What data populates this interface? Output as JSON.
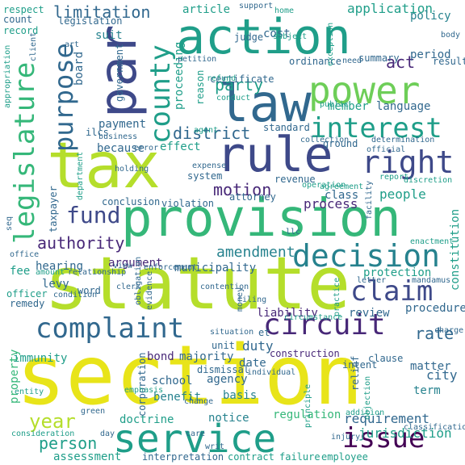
{
  "title": "",
  "palette": {
    "yellow": "#e8e419",
    "lime": "#b5de2b",
    "green": "#6ece58",
    "teal_green": "#35b779",
    "teal": "#1f9e89",
    "blue_teal": "#26828e",
    "blue": "#31688e",
    "indigo": "#3e4989",
    "purple": "#482878",
    "dark": "#440154"
  },
  "words": [
    {
      "text": "section",
      "color": "yellow"
    },
    {
      "text": "statute",
      "color": "lime"
    },
    {
      "text": "tax",
      "color": "lime"
    },
    {
      "text": "provision",
      "color": "teal_green"
    },
    {
      "text": "action",
      "color": "teal"
    },
    {
      "text": "law",
      "color": "blue"
    },
    {
      "text": "rule",
      "color": "indigo"
    },
    {
      "text": "par",
      "color": "indigo"
    },
    {
      "text": "power",
      "color": "green"
    },
    {
      "text": "service",
      "color": "teal"
    },
    {
      "text": "county",
      "color": "teal"
    },
    {
      "text": "legislature",
      "color": "teal_green"
    },
    {
      "text": "purpose",
      "color": "blue"
    },
    {
      "text": "interest",
      "color": "teal"
    },
    {
      "text": "right",
      "color": "indigo"
    },
    {
      "text": "decision",
      "color": "blue_teal"
    },
    {
      "text": "claim",
      "color": "indigo"
    },
    {
      "text": "circuit",
      "color": "purple"
    },
    {
      "text": "complaint",
      "color": "blue"
    },
    {
      "text": "issue",
      "color": "dark"
    },
    {
      "text": "fund",
      "color": "indigo"
    },
    {
      "text": "year",
      "color": "lime"
    },
    {
      "text": "authority",
      "color": "purple"
    },
    {
      "text": "person",
      "color": "teal"
    },
    {
      "text": "party",
      "color": "teal"
    },
    {
      "text": "district",
      "color": "blue"
    },
    {
      "text": "rate",
      "color": "blue"
    },
    {
      "text": "motion",
      "color": "purple"
    },
    {
      "text": "amendment",
      "color": "blue_teal"
    },
    {
      "text": "limitation",
      "color": "blue"
    },
    {
      "text": "act",
      "color": "purple"
    },
    {
      "text": "application",
      "color": "teal"
    },
    {
      "text": "requirement",
      "color": "blue"
    },
    {
      "text": "jurisdiction",
      "color": "teal"
    },
    {
      "text": "process",
      "color": "purple"
    },
    {
      "text": "people",
      "color": "teal"
    },
    {
      "text": "hearing",
      "color": "blue"
    },
    {
      "text": "argument",
      "color": "purple"
    },
    {
      "text": "duty",
      "color": "blue"
    },
    {
      "text": "bond",
      "color": "purple"
    },
    {
      "text": "majority",
      "color": "blue"
    },
    {
      "text": "school",
      "color": "blue"
    },
    {
      "text": "agency",
      "color": "blue"
    },
    {
      "text": "basis",
      "color": "blue_teal"
    },
    {
      "text": "city",
      "color": "blue"
    },
    {
      "text": "term",
      "color": "blue_teal"
    },
    {
      "text": "matter",
      "color": "blue"
    },
    {
      "text": "date",
      "color": "blue"
    },
    {
      "text": "benefit",
      "color": "blue_teal"
    },
    {
      "text": "doctrine",
      "color": "teal"
    },
    {
      "text": "notice",
      "color": "blue_teal"
    },
    {
      "text": "regulation",
      "color": "teal_green"
    },
    {
      "text": "assessment",
      "color": "teal"
    },
    {
      "text": "contract",
      "color": "teal"
    },
    {
      "text": "effect",
      "color": "teal"
    },
    {
      "text": "because",
      "color": "blue"
    },
    {
      "text": "payment",
      "color": "blue"
    },
    {
      "text": "proceeding",
      "color": "teal"
    },
    {
      "text": "language",
      "color": "blue"
    },
    {
      "text": "member",
      "color": "teal"
    },
    {
      "text": "period",
      "color": "blue"
    },
    {
      "text": "policy",
      "color": "blue_teal"
    },
    {
      "text": "article",
      "color": "teal"
    },
    {
      "text": "cost",
      "color": "blue"
    },
    {
      "text": "ordinance",
      "color": "blue"
    },
    {
      "text": "suit",
      "color": "blue_teal"
    },
    {
      "text": "board",
      "color": "blue"
    },
    {
      "text": "reason",
      "color": "teal"
    },
    {
      "text": "government",
      "color": "blue"
    },
    {
      "text": "fee",
      "color": "teal"
    },
    {
      "text": "levy",
      "color": "blue"
    },
    {
      "text": "immunity",
      "color": "teal"
    },
    {
      "text": "property",
      "color": "teal_green"
    },
    {
      "text": "taxpayer",
      "color": "blue"
    },
    {
      "text": "class",
      "color": "blue"
    },
    {
      "text": "attorney",
      "color": "blue"
    },
    {
      "text": "review",
      "color": "blue"
    },
    {
      "text": "protection",
      "color": "teal"
    },
    {
      "text": "constitution",
      "color": "teal"
    },
    {
      "text": "procedure",
      "color": "blue"
    },
    {
      "text": "liability",
      "color": "purple"
    },
    {
      "text": "municipality",
      "color": "blue"
    },
    {
      "text": "construction",
      "color": "purple"
    },
    {
      "text": "intent",
      "color": "blue"
    },
    {
      "text": "clause",
      "color": "blue"
    },
    {
      "text": "dismissal",
      "color": "blue"
    },
    {
      "text": "corporation",
      "color": "blue"
    },
    {
      "text": "failure",
      "color": "teal"
    },
    {
      "text": "employee",
      "color": "teal"
    },
    {
      "text": "interpretation",
      "color": "blue"
    },
    {
      "text": "relief",
      "color": "blue"
    },
    {
      "text": "objection",
      "color": "teal"
    },
    {
      "text": "principle",
      "color": "teal"
    },
    {
      "text": "unit",
      "color": "blue"
    },
    {
      "text": "system",
      "color": "blue"
    },
    {
      "text": "standard",
      "color": "blue"
    },
    {
      "text": "ground",
      "color": "blue"
    },
    {
      "text": "violation",
      "color": "blue"
    },
    {
      "text": "conclusion",
      "color": "blue"
    },
    {
      "text": "remedy",
      "color": "blue"
    },
    {
      "text": "officer",
      "color": "teal"
    },
    {
      "text": "word",
      "color": "blue"
    },
    {
      "text": "certificate",
      "color": "blue"
    },
    {
      "text": "revenue",
      "color": "blue"
    },
    {
      "text": "record",
      "color": "teal"
    },
    {
      "text": "count",
      "color": "blue"
    },
    {
      "text": "respect",
      "color": "teal"
    },
    {
      "text": "legislation",
      "color": "blue"
    },
    {
      "text": "summary",
      "color": "blue"
    },
    {
      "text": "result",
      "color": "blue"
    },
    {
      "text": "charge",
      "color": "blue"
    },
    {
      "text": "emphasis",
      "color": "teal"
    },
    {
      "text": "judge",
      "color": "blue"
    },
    {
      "text": "care",
      "color": "blue"
    },
    {
      "text": "business",
      "color": "blue"
    },
    {
      "text": "collection",
      "color": "blue"
    },
    {
      "text": "determination",
      "color": "blue"
    },
    {
      "text": "mandamus",
      "color": "blue"
    },
    {
      "text": "exception",
      "color": "teal"
    },
    {
      "text": "body",
      "color": "blue"
    },
    {
      "text": "support",
      "color": "blue"
    },
    {
      "text": "home",
      "color": "teal"
    },
    {
      "text": "subject",
      "color": "teal"
    },
    {
      "text": "refund",
      "color": "teal"
    },
    {
      "text": "petition",
      "color": "blue"
    },
    {
      "text": "appropriation",
      "color": "teal"
    },
    {
      "text": "client",
      "color": "blue"
    },
    {
      "text": "amount",
      "color": "teal"
    },
    {
      "text": "relationship",
      "color": "blue"
    },
    {
      "text": "contention",
      "color": "blue"
    },
    {
      "text": "filing",
      "color": "blue"
    },
    {
      "text": "money",
      "color": "blue"
    },
    {
      "text": "circumstance",
      "color": "teal"
    },
    {
      "text": "practice",
      "color": "teal"
    },
    {
      "text": "facility",
      "color": "blue"
    },
    {
      "text": "enactment",
      "color": "teal"
    },
    {
      "text": "situation",
      "color": "blue"
    },
    {
      "text": "individual",
      "color": "blue"
    },
    {
      "text": "change",
      "color": "blue"
    },
    {
      "text": "entity",
      "color": "teal"
    },
    {
      "text": "consideration",
      "color": "teal"
    },
    {
      "text": "writ",
      "color": "blue"
    },
    {
      "text": "injury",
      "color": "blue"
    },
    {
      "text": "addition",
      "color": "teal"
    },
    {
      "text": "classification",
      "color": "blue"
    },
    {
      "text": "department",
      "color": "teal"
    },
    {
      "text": "holding",
      "color": "blue"
    },
    {
      "text": "obligation",
      "color": "blue"
    },
    {
      "text": "evidence",
      "color": "blue"
    },
    {
      "text": "operation",
      "color": "teal"
    },
    {
      "text": "agreement",
      "color": "teal"
    },
    {
      "text": "discretion",
      "color": "teal"
    },
    {
      "text": "report",
      "color": "teal"
    },
    {
      "text": "official",
      "color": "blue"
    },
    {
      "text": "agent",
      "color": "teal"
    },
    {
      "text": "error",
      "color": "blue"
    },
    {
      "text": "clerk",
      "color": "blue"
    },
    {
      "text": "enforcement",
      "color": "blue"
    },
    {
      "text": "condition",
      "color": "blue"
    },
    {
      "text": "letter",
      "color": "blue"
    },
    {
      "text": "view",
      "color": "blue"
    },
    {
      "text": "day",
      "color": "blue"
    },
    {
      "text": "et",
      "color": "blue"
    },
    {
      "text": "ilcs",
      "color": "blue"
    },
    {
      "text": "llc",
      "color": "blue"
    },
    {
      "text": "seq",
      "color": "blue"
    },
    {
      "text": "office",
      "color": "blue"
    },
    {
      "text": "conduct",
      "color": "teal"
    },
    {
      "text": "expense",
      "color": "blue"
    },
    {
      "text": "public",
      "color": "teal"
    },
    {
      "text": "need",
      "color": "blue"
    },
    {
      "text": "art",
      "color": "blue"
    },
    {
      "text": "green",
      "color": "blue"
    }
  ]
}
